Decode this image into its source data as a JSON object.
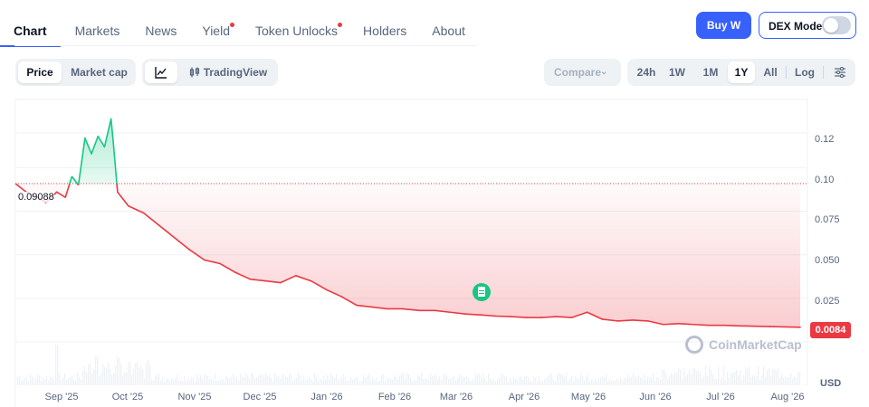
{
  "nav": {
    "tabs": [
      {
        "label": "Chart",
        "active": true
      },
      {
        "label": "Markets"
      },
      {
        "label": "News"
      },
      {
        "label": "Yield",
        "dot": true
      },
      {
        "label": "Token Unlocks",
        "dot": true
      },
      {
        "label": "Holders"
      },
      {
        "label": "About"
      }
    ],
    "buy_label": "Buy W",
    "dex_label": "DEX Mode",
    "dex_on": false
  },
  "toolbar": {
    "metric": [
      "Price",
      "Market cap"
    ],
    "metric_selected": "Price",
    "chart_style_icon": "line-chart-icon",
    "tradingview_label": "TradingView",
    "compare_label": "Compare",
    "ranges": [
      "24h",
      "1W",
      "1M",
      "1Y",
      "All"
    ],
    "range_selected": "1Y",
    "log_label": "Log",
    "settings_icon": "sliders-icon"
  },
  "chart": {
    "open_label": "0.09088",
    "current_label": "0.0084",
    "currency": "USD",
    "watermark": "CoinMarketCap",
    "y_ticks": [
      "0.12",
      "0.10",
      "0.075",
      "0.050",
      "0.025"
    ],
    "x_ticks": [
      "Sep '25",
      "Oct '25",
      "Nov '25",
      "Dec '25",
      "Jan '26",
      "Feb '26",
      "Mar '26",
      "Apr '26",
      "May '26",
      "Jun '26",
      "Jul '26",
      "Aug '26"
    ],
    "colors": {
      "up": "#16c784",
      "down": "#ea3943"
    }
  },
  "chart_data": {
    "type": "area",
    "title": "",
    "xlabel": "",
    "ylabel": "USD",
    "ylim": [
      0,
      0.135
    ],
    "baseline": 0.09088,
    "x": [
      "2025-08-27",
      "2025-09-01",
      "2025-09-06",
      "2025-09-10",
      "2025-09-15",
      "2025-09-19",
      "2025-09-22",
      "2025-09-25",
      "2025-09-28",
      "2025-10-01",
      "2025-10-04",
      "2025-10-07",
      "2025-10-10",
      "2025-10-11",
      "2025-10-13",
      "2025-10-18",
      "2025-10-25",
      "2025-11-01",
      "2025-11-08",
      "2025-11-15",
      "2025-11-22",
      "2025-11-29",
      "2025-12-06",
      "2025-12-13",
      "2025-12-20",
      "2025-12-27",
      "2026-01-03",
      "2026-01-10",
      "2026-01-17",
      "2026-01-24",
      "2026-01-31",
      "2026-02-07",
      "2026-02-14",
      "2026-02-21",
      "2026-03-01",
      "2026-03-08",
      "2026-03-15",
      "2026-03-22",
      "2026-03-29",
      "2026-04-05",
      "2026-04-12",
      "2026-04-19",
      "2026-04-26",
      "2026-05-03",
      "2026-05-10",
      "2026-05-17",
      "2026-05-24",
      "2026-05-31",
      "2026-06-07",
      "2026-06-14",
      "2026-06-21",
      "2026-06-28",
      "2026-07-05",
      "2026-07-12",
      "2026-07-19",
      "2026-07-26",
      "2026-08-02",
      "2026-08-09",
      "2026-08-16",
      "2026-08-23"
    ],
    "series": [
      {
        "values": [
          0.0909,
          0.086,
          0.083,
          0.08,
          0.086,
          0.083,
          0.095,
          0.09,
          0.117,
          0.108,
          0.118,
          0.112,
          0.128,
          0.115,
          0.086,
          0.078,
          0.074,
          0.067,
          0.06,
          0.053,
          0.047,
          0.045,
          0.04,
          0.036,
          0.035,
          0.034,
          0.038,
          0.035,
          0.03,
          0.026,
          0.021,
          0.02,
          0.019,
          0.019,
          0.018,
          0.018,
          0.017,
          0.016,
          0.0155,
          0.0148,
          0.0145,
          0.014,
          0.014,
          0.0145,
          0.014,
          0.017,
          0.013,
          0.012,
          0.0125,
          0.012,
          0.01,
          0.0105,
          0.01,
          0.0095,
          0.0095,
          0.0092,
          0.009,
          0.0088,
          0.0086,
          0.0084
        ]
      }
    ]
  }
}
